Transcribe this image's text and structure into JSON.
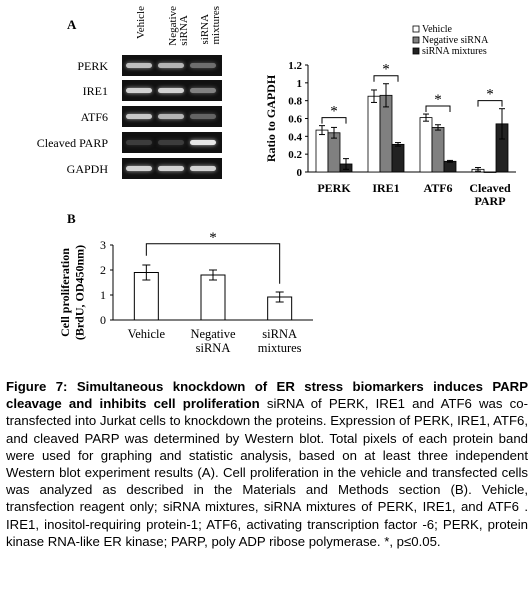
{
  "panel_a": {
    "label": "A",
    "lanes": [
      "Vehicle",
      "Negative\nsiRNA",
      "siRNA\nmixtures"
    ],
    "blots": [
      {
        "name": "PERK",
        "intensity": [
          0.75,
          0.7,
          0.35
        ]
      },
      {
        "name": "IRE1",
        "intensity": [
          0.85,
          0.85,
          0.45
        ]
      },
      {
        "name": "ATF6",
        "intensity": [
          0.8,
          0.7,
          0.3
        ]
      },
      {
        "name": "Cleaved PARP",
        "intensity": [
          0.1,
          0.1,
          0.95
        ]
      },
      {
        "name": "GAPDH",
        "intensity": [
          0.85,
          0.85,
          0.85
        ]
      }
    ]
  },
  "panel_b": {
    "label": "B"
  },
  "chart_data": [
    {
      "type": "bar",
      "ylabel": "Ratio to GAPDH",
      "ylim": [
        0,
        1.2
      ],
      "yticks": [
        "0",
        "0.2",
        "0.4",
        "0.6",
        "0.8",
        "1",
        "1.2"
      ],
      "categories": [
        "PERK",
        "IRE1",
        "ATF6",
        "Cleaved\nPARP"
      ],
      "series": [
        {
          "name": "Vehicle",
          "color": "#ffffff",
          "values": [
            0.47,
            0.85,
            0.61,
            0.03
          ],
          "errors": [
            0.05,
            0.07,
            0.04,
            0.02
          ]
        },
        {
          "name": "Negative siRNA",
          "color": "#808080",
          "values": [
            0.44,
            0.86,
            0.5,
            0.0
          ],
          "errors": [
            0.06,
            0.13,
            0.03,
            0.0
          ]
        },
        {
          "name": "siRNA mixtures",
          "color": "#222222",
          "values": [
            0.09,
            0.31,
            0.12,
            0.54
          ],
          "errors": [
            0.06,
            0.02,
            0.01,
            0.17
          ]
        }
      ],
      "significance": [
        {
          "category": "PERK",
          "label": "*"
        },
        {
          "category": "IRE1",
          "label": "*"
        },
        {
          "category": "ATF6",
          "label": "*"
        },
        {
          "category": "Cleaved\nPARP",
          "label": "*"
        }
      ],
      "legend": "top-right"
    },
    {
      "type": "bar",
      "ylabel": "Cell proliferation\n(BrdU, OD450nm)",
      "ylim": [
        0,
        3
      ],
      "yticks": [
        "0",
        "1",
        "2",
        "3"
      ],
      "categories": [
        "Vehicle",
        "Negative\nsiRNA",
        "siRNA\nmixtures"
      ],
      "values": [
        1.9,
        1.8,
        0.92
      ],
      "errors": [
        0.3,
        0.2,
        0.2
      ],
      "significance": [
        {
          "from": "Vehicle",
          "to": "siRNA\nmixtures",
          "label": "*"
        }
      ]
    }
  ],
  "caption": {
    "figure_title": "Figure 7: Simultaneous knockdown of ER stress biomarkers induces PARP cleavage and inhibits cell proliferation",
    "body": " siRNA of PERK, IRE1 and ATF6 was co-transfected into Jurkat cells to knockdown the proteins. Expression of PERK, IRE1, ATF6, and cleaved PARP was determined by Western blot. Total pixels of each protein band were used for graphing and statistic analysis, based on at least three independent Western blot experiment results (A). Cell proliferation in the vehicle and transfected cells was analyzed as described in the Materials and Methods section (B). Vehicle, transfection reagent only; siRNA mixtures, siRNA mixtures of PERK, IRE1, and ATF6 . IRE1, inositol-requiring protein-1; ATF6, activating transcription factor -6; PERK, protein kinase RNA-like ER kinase; PARP, poly ADP ribose polymerase.  *,  p≤0.05."
  }
}
